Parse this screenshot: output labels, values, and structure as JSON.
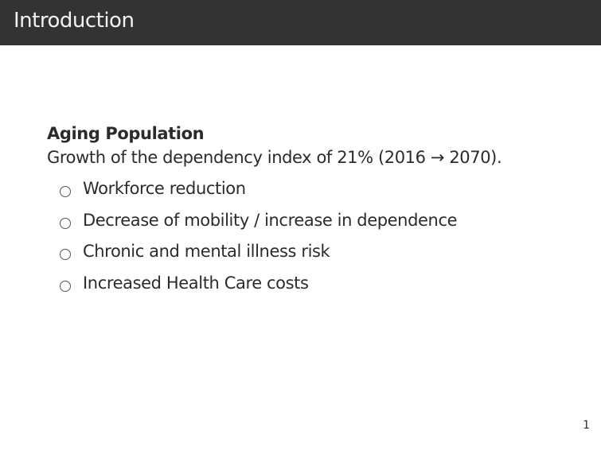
{
  "header": {
    "title": "Introduction"
  },
  "block": {
    "title": "Aging Population",
    "text": "Growth of the dependency index of 21% (2016 → 2070)."
  },
  "bullets": [
    {
      "label": "Workforce reduction",
      "icon": "circle-bullet-icon"
    },
    {
      "label": "Decrease of mobility / increase in dependence",
      "icon": "circle-bullet-icon"
    },
    {
      "label": "Chronic and mental illness risk",
      "icon": "circle-bullet-icon"
    },
    {
      "label": "Increased Health Care costs",
      "icon": "circle-bullet-icon"
    }
  ],
  "footer": {
    "page_number": "1"
  },
  "colors": {
    "header_background": "#333333",
    "header_text": "#f2f2f2",
    "body_text": "#2b2b2b",
    "background": "#ffffff"
  }
}
